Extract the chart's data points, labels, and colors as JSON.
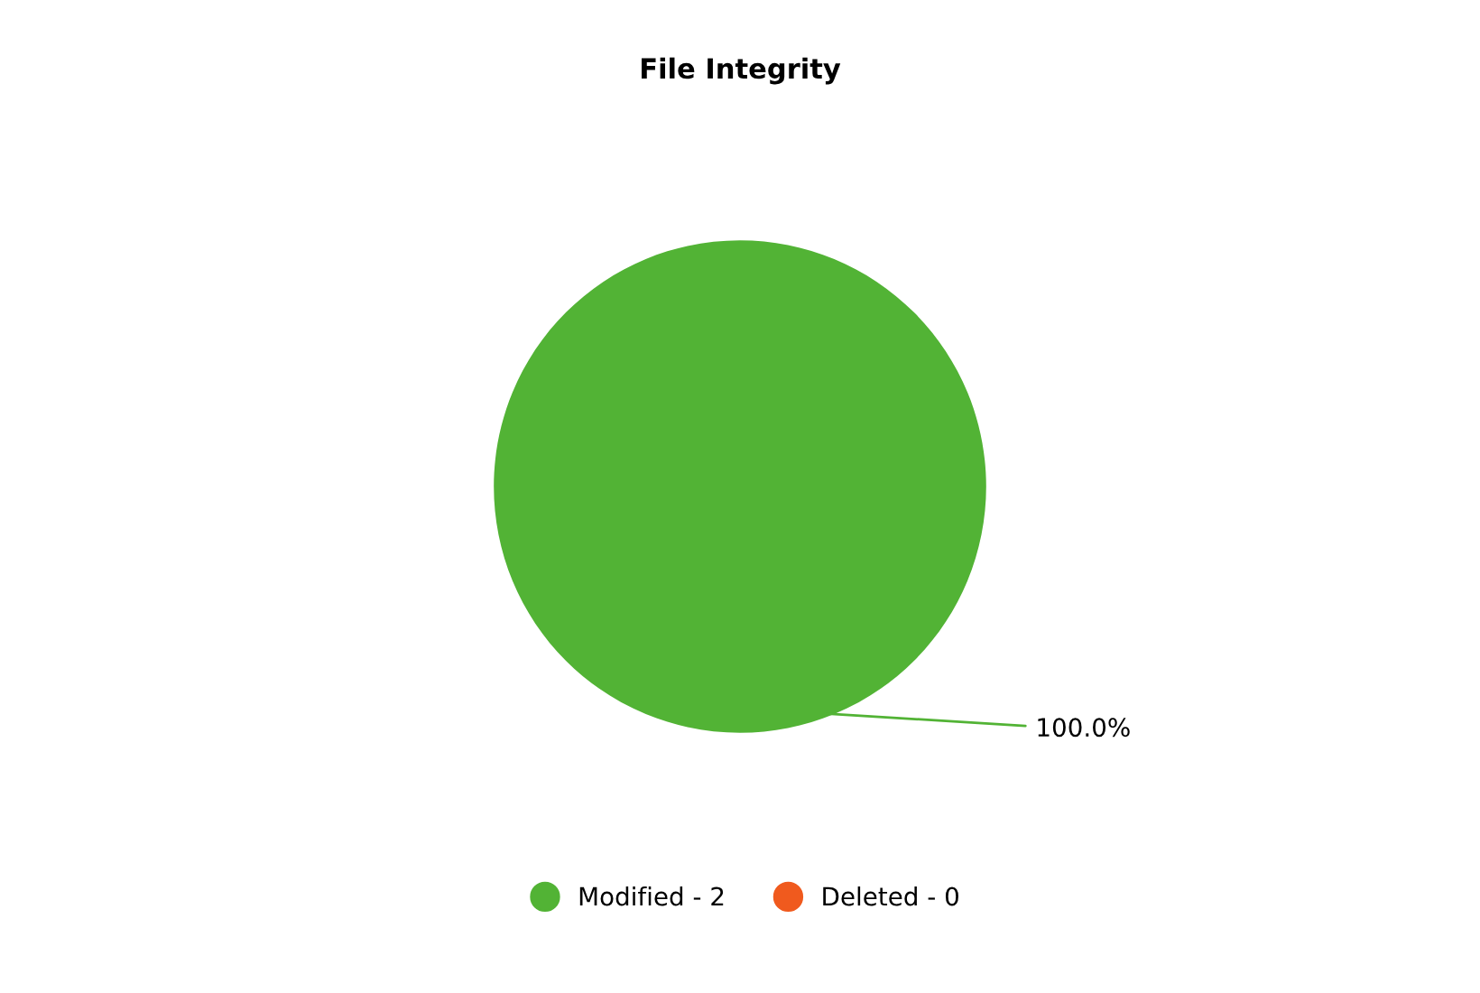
{
  "chart_data": {
    "type": "pie",
    "title": "File Integrity",
    "categories": [
      "Modified - 2",
      "Deleted - 0"
    ],
    "values": [
      100,
      0
    ],
    "colors": [
      "#52b335",
      "#f05a1e"
    ],
    "value_labels": [
      "100.0%",
      null
    ],
    "legend": "bottom"
  }
}
